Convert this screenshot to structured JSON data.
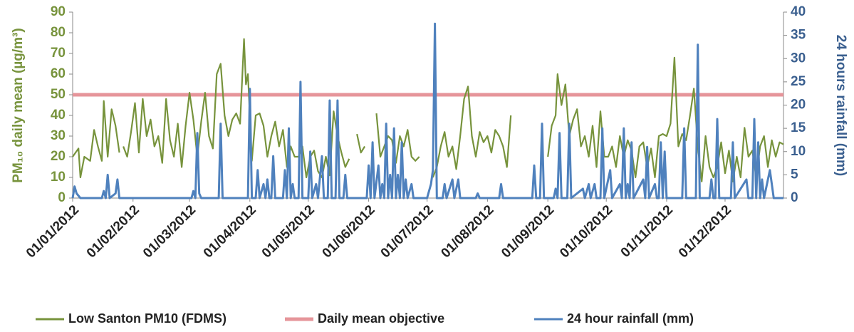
{
  "chart_data": {
    "type": "line",
    "y_label": "PM₁₀ daily mean (µg/m³)",
    "y2_label": "24 hours rainfall (mm)",
    "xlim": [
      "01/01/2012",
      "31/12/2012"
    ],
    "xticks": [
      "01/01/2012",
      "01/02/2012",
      "01/03/2012",
      "01/04/2012",
      "01/05/2012",
      "01/06/2012",
      "01/07/2012",
      "01/08/2012",
      "01/09/2012",
      "01/10/2012",
      "01/11/2012",
      "01/12/2012"
    ],
    "ylim": [
      0,
      90
    ],
    "yticks": [
      0,
      10,
      20,
      30,
      40,
      50,
      60,
      70,
      80,
      90
    ],
    "y2lim": [
      0,
      40
    ],
    "y2ticks": [
      0,
      5,
      10,
      15,
      20,
      25,
      30,
      35,
      40
    ],
    "series": [
      {
        "name": "Low Santon PM10 (FDMS)",
        "color": "#77933c",
        "axis": "y",
        "x": [
          "01/01/2012",
          "04/01/2012",
          "05/01/2012",
          "07/01/2012",
          "10/01/2012",
          "12/01/2012",
          "14/01/2012",
          "16/01/2012",
          "17/01/2012",
          "19/01/2012",
          "21/01/2012",
          "23/01/2012",
          "25/01/2012",
          "26/01/2012",
          "27/01/2012",
          "29/01/2012",
          "31/01/2012",
          "02/02/2012",
          "04/02/2012",
          "06/02/2012",
          "08/02/2012",
          "10/02/2012",
          "12/02/2012",
          "14/02/2012",
          "16/02/2012",
          "18/02/2012",
          "20/02/2012",
          "22/02/2012",
          "24/02/2012",
          "26/02/2012",
          "28/02/2012",
          "01/03/2012",
          "03/03/2012",
          "05/03/2012",
          "07/03/2012",
          "09/03/2012",
          "11/03/2012",
          "13/03/2012",
          "15/03/2012",
          "17/03/2012",
          "19/03/2012",
          "21/03/2012",
          "23/03/2012",
          "25/03/2012",
          "27/03/2012",
          "29/03/2012",
          "30/03/2012",
          "31/03/2012",
          "02/04/2012",
          "04/04/2012",
          "06/04/2012",
          "08/04/2012",
          "10/04/2012",
          "12/04/2012",
          "14/04/2012",
          "16/04/2012",
          "18/04/2012",
          "20/04/2012",
          "22/04/2012",
          "24/04/2012",
          "26/04/2012",
          "28/04/2012",
          "30/04/2012",
          "02/05/2012",
          "04/05/2012",
          "06/05/2012",
          "08/05/2012",
          "10/05/2012",
          "12/05/2012",
          "14/05/2012",
          "16/05/2012",
          "18/05/2012",
          "20/05/2012",
          "22/05/2012",
          "24/05/2012",
          "26/05/2012",
          "28/05/2012",
          "30/05/2012",
          "02/06/2012",
          "05/06/2012",
          "07/06/2012",
          "09/06/2012",
          "11/06/2012",
          "13/06/2012",
          "15/06/2012",
          "17/06/2012",
          "19/06/2012",
          "21/06/2012",
          "23/06/2012",
          "25/06/2012",
          "27/06/2012",
          "30/06/2012",
          "04/07/2012",
          "06/07/2012",
          "08/07/2012",
          "10/07/2012",
          "12/07/2012",
          "14/07/2012",
          "16/07/2012",
          "18/07/2012",
          "20/07/2012",
          "22/07/2012",
          "24/07/2012",
          "26/07/2012",
          "28/07/2012",
          "30/07/2012",
          "01/08/2012",
          "03/08/2012",
          "05/08/2012",
          "07/08/2012",
          "09/08/2012",
          "11/08/2012",
          "13/08/2012",
          "20/08/2012",
          "01/09/2012",
          "03/09/2012",
          "05/09/2012",
          "06/09/2012",
          "08/09/2012",
          "10/09/2012",
          "12/09/2012",
          "14/09/2012",
          "16/09/2012",
          "18/09/2012",
          "20/09/2012",
          "22/09/2012",
          "24/09/2012",
          "26/09/2012",
          "28/09/2012",
          "30/09/2012",
          "02/10/2012",
          "04/10/2012",
          "06/10/2012",
          "08/10/2012",
          "10/10/2012",
          "12/10/2012",
          "14/10/2012",
          "16/10/2012",
          "18/10/2012",
          "20/10/2012",
          "22/10/2012",
          "24/10/2012",
          "26/10/2012",
          "28/10/2012",
          "30/10/2012",
          "01/11/2012",
          "03/11/2012",
          "05/11/2012",
          "07/11/2012",
          "09/11/2012",
          "11/11/2012",
          "13/11/2012",
          "15/11/2012",
          "17/11/2012",
          "19/11/2012",
          "21/11/2012",
          "23/11/2012",
          "25/11/2012",
          "27/11/2012",
          "29/11/2012",
          "01/12/2012",
          "03/12/2012",
          "05/12/2012",
          "07/12/2012",
          "09/12/2012",
          "11/12/2012",
          "13/12/2012",
          "15/12/2012",
          "17/12/2012",
          "19/12/2012",
          "21/12/2012",
          "23/12/2012",
          "25/12/2012",
          "27/12/2012",
          "29/12/2012",
          "31/12/2012"
        ],
        "values": [
          20,
          24,
          10,
          20,
          18,
          33,
          25,
          18,
          47,
          20,
          43,
          35,
          22,
          null,
          25,
          20,
          32,
          46,
          22,
          48,
          30,
          38,
          25,
          30,
          17,
          48,
          28,
          20,
          36,
          15,
          35,
          51,
          38,
          20,
          37,
          51,
          30,
          24,
          60,
          65,
          40,
          30,
          38,
          41,
          36,
          77,
          55,
          60,
          18,
          40,
          41,
          35,
          20,
          30,
          37,
          25,
          33,
          15,
          25,
          20,
          20,
          25,
          10,
          20,
          23,
          13,
          10,
          20,
          11,
          42,
          30,
          22,
          15,
          19,
          null,
          31,
          22,
          25,
          null,
          41,
          20,
          25,
          30,
          28,
          17,
          30,
          25,
          33,
          20,
          18,
          20,
          null,
          10,
          15,
          25,
          32,
          20,
          25,
          14,
          30,
          48,
          54,
          30,
          20,
          32,
          27,
          30,
          22,
          33,
          30,
          25,
          15,
          40,
          null,
          20,
          35,
          40,
          60,
          45,
          55,
          30,
          38,
          43,
          25,
          30,
          20,
          35,
          15,
          42,
          20,
          20,
          25,
          15,
          30,
          20,
          28,
          23,
          10,
          25,
          27,
          15,
          24,
          10,
          30,
          31,
          30,
          36,
          68,
          25,
          31,
          28,
          40,
          53,
          25,
          8,
          30,
          15,
          10,
          15,
          27,
          12,
          23,
          8,
          20,
          10,
          34,
          20,
          23,
          10,
          25,
          30,
          15,
          28,
          20,
          27,
          26
        ]
      },
      {
        "name": "Daily mean objective",
        "color": "#e6959a",
        "axis": "y",
        "x": [
          "01/01/2012",
          "31/12/2012"
        ],
        "values": [
          50,
          50
        ]
      },
      {
        "name": "24 hour rainfall (mm)",
        "color": "#4f81bd",
        "axis": "y2",
        "x": [
          "01/01/2012",
          "02/01/2012",
          "03/01/2012",
          "05/01/2012",
          "16/01/2012",
          "17/01/2012",
          "18/01/2012",
          "19/01/2012",
          "20/01/2012",
          "23/01/2012",
          "24/01/2012",
          "25/01/2012",
          "02/03/2012",
          "03/03/2012",
          "04/03/2012",
          "05/03/2012",
          "06/03/2012",
          "07/03/2012",
          "16/03/2012",
          "17/03/2012",
          "18/03/2012",
          "31/03/2012",
          "01/04/2012",
          "02/04/2012",
          "04/04/2012",
          "05/04/2012",
          "06/04/2012",
          "08/04/2012",
          "09/04/2012",
          "10/04/2012",
          "11/04/2012",
          "12/04/2012",
          "13/04/2012",
          "14/04/2012",
          "18/04/2012",
          "19/04/2012",
          "20/04/2012",
          "21/04/2012",
          "22/04/2012",
          "23/04/2012",
          "24/04/2012",
          "26/04/2012",
          "27/04/2012",
          "28/04/2012",
          "01/05/2012",
          "02/05/2012",
          "03/05/2012",
          "05/05/2012",
          "06/05/2012",
          "08/05/2012",
          "09/05/2012",
          "11/05/2012",
          "12/05/2012",
          "13/05/2012",
          "15/05/2012",
          "16/05/2012",
          "17/05/2012",
          "19/05/2012",
          "20/05/2012",
          "21/05/2012",
          "31/05/2012",
          "01/06/2012",
          "02/06/2012",
          "03/06/2012",
          "04/06/2012",
          "06/06/2012",
          "07/06/2012",
          "08/06/2012",
          "09/06/2012",
          "10/06/2012",
          "11/06/2012",
          "12/06/2012",
          "13/06/2012",
          "14/06/2012",
          "15/06/2012",
          "16/06/2012",
          "17/06/2012",
          "18/06/2012",
          "19/06/2012",
          "20/06/2012",
          "21/06/2012",
          "23/06/2012",
          "24/06/2012",
          "01/07/2012",
          "03/07/2012",
          "04/07/2012",
          "05/07/2012",
          "06/07/2012",
          "09/07/2012",
          "10/07/2012",
          "11/07/2012",
          "14/07/2012",
          "15/07/2012",
          "17/07/2012",
          "18/07/2012",
          "26/07/2012",
          "27/07/2012",
          "28/07/2012",
          "07/08/2012",
          "08/08/2012",
          "09/08/2012",
          "24/08/2012",
          "25/08/2012",
          "26/08/2012",
          "28/08/2012",
          "29/08/2012",
          "30/08/2012",
          "04/09/2012",
          "05/09/2012",
          "06/09/2012",
          "07/09/2012",
          "08/09/2012",
          "11/09/2012",
          "12/09/2012",
          "13/09/2012",
          "19/09/2012",
          "20/09/2012",
          "22/09/2012",
          "23/09/2012",
          "25/09/2012",
          "26/09/2012",
          "28/09/2012",
          "29/09/2012",
          "30/09/2012",
          "03/10/2012",
          "04/10/2012",
          "08/10/2012",
          "09/10/2012",
          "10/10/2012",
          "11/10/2012",
          "12/10/2012",
          "13/10/2012",
          "14/10/2012",
          "15/10/2012",
          "20/10/2012",
          "21/10/2012",
          "22/10/2012",
          "23/10/2012",
          "26/10/2012",
          "27/10/2012",
          "28/10/2012",
          "29/10/2012",
          "30/10/2012",
          "31/10/2012",
          "01/11/2012",
          "09/11/2012",
          "10/11/2012",
          "11/11/2012",
          "16/11/2012",
          "17/11/2012",
          "18/11/2012",
          "23/11/2012",
          "24/11/2012",
          "25/11/2012",
          "26/11/2012",
          "27/11/2012",
          "28/11/2012",
          "04/12/2012",
          "05/12/2012",
          "06/12/2012",
          "12/12/2012",
          "13/12/2012",
          "15/12/2012",
          "16/12/2012",
          "17/12/2012",
          "18/12/2012",
          "19/12/2012",
          "20/12/2012",
          "21/12/2012",
          "24/12/2012",
          "25/12/2012",
          "26/12/2012",
          "31/12/2012"
        ],
        "values": [
          0,
          2.5,
          1,
          0,
          0,
          1.5,
          0,
          5,
          0,
          1,
          4,
          0,
          0,
          1.5,
          0,
          14,
          1,
          0,
          0,
          16,
          0,
          0,
          23.5,
          0,
          0,
          6,
          0,
          3,
          0,
          4,
          0,
          0,
          9,
          0,
          0,
          6,
          0,
          15,
          0,
          3,
          0,
          0,
          25,
          0,
          0,
          10,
          0,
          3,
          0,
          9,
          0,
          0,
          21,
          0,
          0,
          21,
          0,
          0,
          5,
          0,
          0,
          7,
          0,
          12,
          0,
          7,
          0,
          3,
          0,
          16,
          0,
          5,
          0,
          15,
          0,
          5,
          0,
          12,
          0,
          4,
          0,
          3,
          0,
          0,
          3,
          6,
          37.5,
          0,
          0,
          3,
          0,
          4,
          0,
          4,
          0,
          0,
          1,
          0,
          0,
          3,
          0,
          0,
          7,
          0,
          0,
          16,
          0,
          0,
          2,
          0,
          14,
          0,
          0,
          16,
          0,
          2,
          0,
          3,
          0,
          3,
          0,
          0,
          15,
          0,
          6,
          0,
          3,
          0,
          15,
          0,
          3,
          0,
          12,
          0,
          4,
          0,
          11,
          0,
          3,
          0,
          0,
          12,
          0,
          10,
          0,
          0,
          15,
          0,
          0,
          33,
          0,
          0,
          4,
          0,
          0,
          17,
          0,
          0,
          12,
          0,
          4,
          0,
          0,
          17,
          0,
          12,
          0,
          4,
          0,
          6,
          3,
          0,
          0
        ]
      }
    ]
  }
}
